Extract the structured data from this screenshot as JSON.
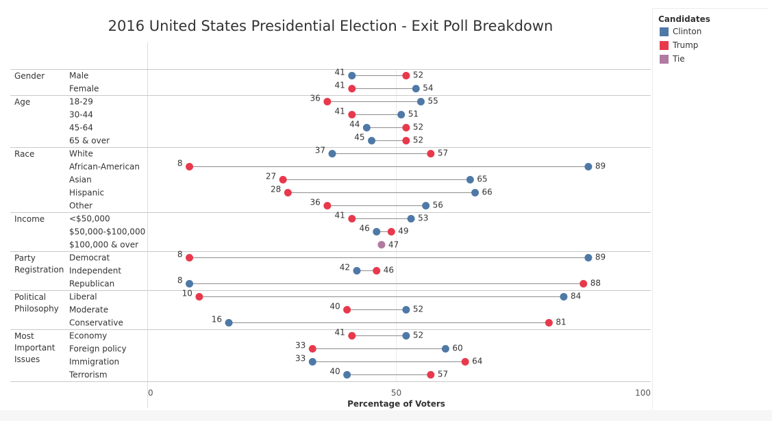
{
  "colors": {
    "clinton": "#4e79a7",
    "trump": "#e8394c",
    "tie": "#b07aa1"
  },
  "legend": {
    "title": "Candidates",
    "items": [
      {
        "label": "Clinton",
        "color": "#4e79a7"
      },
      {
        "label": "Trump",
        "color": "#e8394c"
      },
      {
        "label": "Tie",
        "color": "#b07aa1"
      }
    ]
  },
  "chart_data": {
    "type": "dumbbell",
    "title": "2016 United States Presidential Election - Exit Poll Breakdown",
    "xlabel": "Percentage of Voters",
    "xlim": [
      0,
      100
    ],
    "xticks": [
      0,
      50,
      100
    ],
    "groups": [
      {
        "label": [
          "Gender"
        ],
        "rows": [
          {
            "label": "Male",
            "clinton": 41,
            "trump": 52
          },
          {
            "label": "Female",
            "clinton": 54,
            "trump": 41
          }
        ]
      },
      {
        "label": [
          "Age"
        ],
        "rows": [
          {
            "label": "18-29",
            "clinton": 55,
            "trump": 36
          },
          {
            "label": "30-44",
            "clinton": 51,
            "trump": 41
          },
          {
            "label": "45-64",
            "clinton": 44,
            "trump": 52
          },
          {
            "label": "65 & over",
            "clinton": 45,
            "trump": 52
          }
        ]
      },
      {
        "label": [
          "Race"
        ],
        "rows": [
          {
            "label": "White",
            "clinton": 37,
            "trump": 57
          },
          {
            "label": "African-American",
            "clinton": 89,
            "trump": 8
          },
          {
            "label": "Asian",
            "clinton": 65,
            "trump": 27
          },
          {
            "label": "Hispanic",
            "clinton": 66,
            "trump": 28
          },
          {
            "label": "Other",
            "clinton": 56,
            "trump": 36
          }
        ]
      },
      {
        "label": [
          "Income"
        ],
        "rows": [
          {
            "label": "<$50,000",
            "clinton": 53,
            "trump": 41
          },
          {
            "label": "$50,000-$100,000",
            "clinton": 46,
            "trump": 49
          },
          {
            "label": "$100,000 & over",
            "tie": 47
          }
        ]
      },
      {
        "label": [
          "Party",
          "Registration"
        ],
        "rows": [
          {
            "label": "Democrat",
            "clinton": 89,
            "trump": 8
          },
          {
            "label": "Independent",
            "clinton": 42,
            "trump": 46
          },
          {
            "label": "Republican",
            "clinton": 8,
            "trump": 88
          }
        ]
      },
      {
        "label": [
          "Political",
          "Philosophy"
        ],
        "rows": [
          {
            "label": "Liberal",
            "clinton": 84,
            "trump": 10
          },
          {
            "label": "Moderate",
            "clinton": 52,
            "trump": 40
          },
          {
            "label": "Conservative",
            "clinton": 16,
            "trump": 81
          }
        ]
      },
      {
        "label": [
          "Most",
          "Important",
          "Issues"
        ],
        "rows": [
          {
            "label": "Economy",
            "clinton": 52,
            "trump": 41
          },
          {
            "label": "Foreign policy",
            "clinton": 60,
            "trump": 33
          },
          {
            "label": "Immigration",
            "clinton": 33,
            "trump": 64
          },
          {
            "label": "Terrorism",
            "clinton": 40,
            "trump": 57
          }
        ]
      }
    ]
  }
}
